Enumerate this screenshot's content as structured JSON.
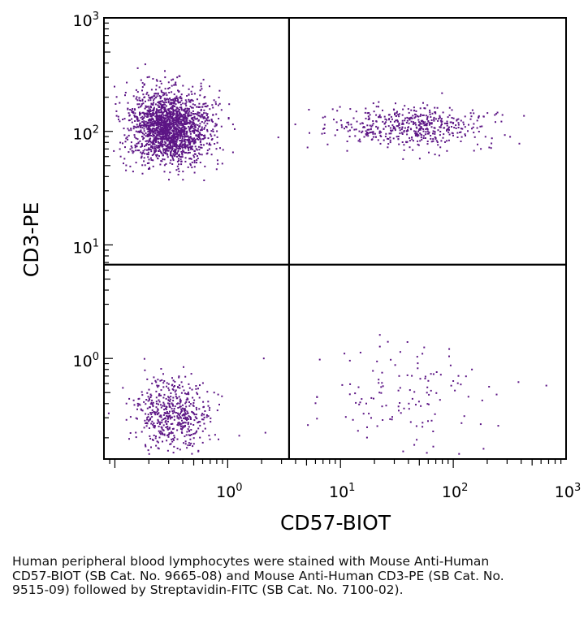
{
  "chart_data": {
    "type": "scatter",
    "xlabel": "CD57-BIOT",
    "ylabel": "CD3-PE",
    "xscale": "log",
    "yscale": "log",
    "xlim": [
      0.08,
      1000
    ],
    "ylim": [
      0.13,
      1000
    ],
    "xticks": [
      {
        "value": 1,
        "base": "10",
        "exp": "0"
      },
      {
        "value": 10,
        "base": "10",
        "exp": "1"
      },
      {
        "value": 100,
        "base": "10",
        "exp": "2"
      },
      {
        "value": 1000,
        "base": "10",
        "exp": "3"
      }
    ],
    "yticks": [
      {
        "value": 1,
        "base": "10",
        "exp": "0"
      },
      {
        "value": 10,
        "base": "10",
        "exp": "1"
      },
      {
        "value": 100,
        "base": "10",
        "exp": "2"
      },
      {
        "value": 1000,
        "base": "10",
        "exp": "3"
      }
    ],
    "quadrant_gates": {
      "x": 3.5,
      "y": 6.7
    },
    "dot_color": "#5c1585",
    "populations": [
      {
        "count": 1900,
        "x_center": 0.3,
        "y_center": 110,
        "x_spread": 0.18,
        "y_spread": 0.16
      },
      {
        "count": 520,
        "x_center": 45,
        "y_center": 110,
        "x_spread": 0.35,
        "y_spread": 0.09
      },
      {
        "count": 520,
        "x_center": 0.33,
        "y_center": 0.33,
        "x_spread": 0.17,
        "y_spread": 0.15
      },
      {
        "count": 130,
        "x_center": 35,
        "y_center": 0.45,
        "x_spread": 0.45,
        "y_spread": 0.22
      }
    ]
  },
  "caption": "Human peripheral blood lymphocytes were stained with Mouse Anti-Human CD57-BIOT (SB Cat. No. 9665-08) and Mouse Anti-Human CD3-PE (SB Cat. No. 9515-09) followed by Streptavidin-FITC (SB Cat. No. 7100-02)."
}
